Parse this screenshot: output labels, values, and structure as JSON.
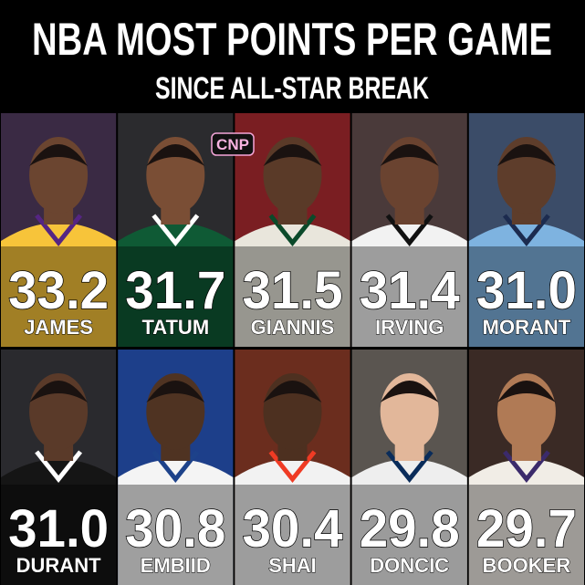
{
  "header": {
    "title": "NBA MOST POINTS PER GAME",
    "subtitle": "SINCE ALL-STAR BREAK",
    "logo": "CNP"
  },
  "players": [
    {
      "value": "33.2",
      "name": "JAMES"
    },
    {
      "value": "31.7",
      "name": "TATUM"
    },
    {
      "value": "31.5",
      "name": "GIANNIS"
    },
    {
      "value": "31.4",
      "name": "IRVING"
    },
    {
      "value": "31.0",
      "name": "MORANT"
    },
    {
      "value": "31.0",
      "name": "DURANT"
    },
    {
      "value": "30.8",
      "name": "EMBIID"
    },
    {
      "value": "30.4",
      "name": "SHAI"
    },
    {
      "value": "29.8",
      "name": "DONCIC"
    },
    {
      "value": "29.7",
      "name": "BOOKER"
    }
  ]
}
